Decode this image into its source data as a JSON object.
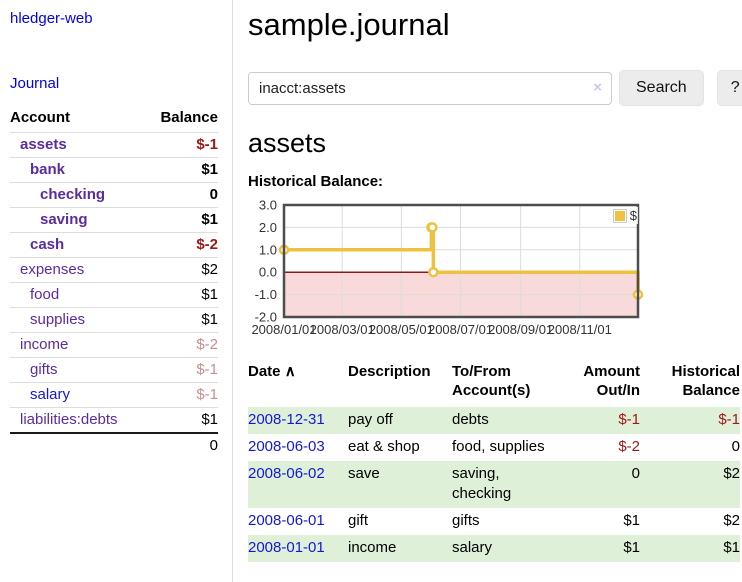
{
  "palette": {
    "link_purple": "#5a2ca0",
    "link_blue": "#1417d6",
    "neg": "#9e1616",
    "dimneg": "#c58f8f",
    "row_green": "#dff0d8",
    "chart_border": "#4d4d4d",
    "gridline": "#dcdcdc"
  },
  "sidebar": {
    "app_title": "hledger-web",
    "journal_label": "Journal",
    "table": {
      "account_header": "Account",
      "balance_header": "Balance",
      "total": "0"
    },
    "accounts": [
      {
        "name": "assets",
        "depth": 1,
        "bold": true,
        "balance": "$-1",
        "balance_style": "neg",
        "link_color": "purple"
      },
      {
        "name": "bank",
        "depth": 2,
        "bold": true,
        "balance": "$1",
        "balance_style": "pos",
        "link_color": "purple"
      },
      {
        "name": "checking",
        "depth": 3,
        "bold": true,
        "balance": "0",
        "balance_style": "pos",
        "link_color": "purple"
      },
      {
        "name": "saving",
        "depth": 3,
        "bold": true,
        "balance": "$1",
        "balance_style": "pos",
        "link_color": "purple"
      },
      {
        "name": "cash",
        "depth": 2,
        "bold": true,
        "balance": "$-2",
        "balance_style": "neg",
        "link_color": "purple"
      },
      {
        "name": "expenses",
        "depth": 1,
        "bold": false,
        "balance": "$2",
        "balance_style": "pos",
        "link_color": "purple"
      },
      {
        "name": "food",
        "depth": 2,
        "bold": false,
        "balance": "$1",
        "balance_style": "pos",
        "link_color": "purple"
      },
      {
        "name": "supplies",
        "depth": 2,
        "bold": false,
        "balance": "$1",
        "balance_style": "pos",
        "link_color": "purple"
      },
      {
        "name": "income",
        "depth": 1,
        "bold": false,
        "balance": "$-2",
        "balance_style": "dimneg",
        "link_color": "purple"
      },
      {
        "name": "gifts",
        "depth": 2,
        "bold": false,
        "balance": "$-1",
        "balance_style": "dimneg",
        "link_color": "purple"
      },
      {
        "name": "salary",
        "depth": 2,
        "bold": false,
        "balance": "$-1",
        "balance_style": "dimneg",
        "link_color": "blue"
      },
      {
        "name": "liabilities:debts",
        "depth": 1,
        "bold": false,
        "balance": "$1",
        "balance_style": "pos",
        "link_color": "purple"
      }
    ]
  },
  "main": {
    "title": "sample.journal",
    "search": {
      "value": "inacct:assets",
      "clear_icon": "×",
      "button_label": "Search",
      "help_label": "?"
    },
    "account_heading": "assets",
    "chart_title": "Historical Balance:",
    "register": {
      "sort_icon": "∧",
      "headers": [
        {
          "label": "Date"
        },
        {
          "label": "Description"
        },
        {
          "label": "To/From Account(s)"
        },
        {
          "label": "Amount Out/In",
          "align": "right"
        },
        {
          "label": "Historical Balance",
          "align": "right"
        }
      ],
      "rows": [
        {
          "date": "2008-12-31",
          "description": "pay off",
          "accounts": "debts",
          "amount": "$-1",
          "amount_style": "neg",
          "balance": "$-1",
          "balance_style": "neg"
        },
        {
          "date": "2008-06-03",
          "description": "eat & shop",
          "accounts": "food, supplies",
          "amount": "$-2",
          "amount_style": "neg",
          "balance": "0",
          "balance_style": "pos"
        },
        {
          "date": "2008-06-02",
          "description": "save",
          "accounts": "saving, checking",
          "amount": "0",
          "amount_style": "pos",
          "balance": "$2",
          "balance_style": "pos"
        },
        {
          "date": "2008-06-01",
          "description": "gift",
          "accounts": "gifts",
          "amount": "$1",
          "amount_style": "pos",
          "balance": "$2",
          "balance_style": "pos"
        },
        {
          "date": "2008-01-01",
          "description": "income",
          "accounts": "salary",
          "amount": "$1",
          "amount_style": "pos",
          "balance": "$1",
          "balance_style": "pos"
        }
      ]
    }
  },
  "chart_data": {
    "type": "line",
    "step": true,
    "title": "Historical Balance",
    "series": [
      {
        "name": "$",
        "color": "#edc240",
        "points": [
          [
            "2008-01-01",
            1
          ],
          [
            "2008-06-01",
            2
          ],
          [
            "2008-06-02",
            2
          ],
          [
            "2008-06-03",
            0
          ],
          [
            "2008-12-31",
            -1
          ]
        ]
      }
    ],
    "x_ticks": [
      "2008/01/01",
      "2008/03/01",
      "2008/05/01",
      "2008/07/01",
      "2008/09/01",
      "2008/11/01"
    ],
    "y_ticks": [
      3.0,
      2.0,
      1.0,
      0.0,
      -1.0,
      -2.0
    ],
    "xlim": [
      "2008-01-01",
      "2008-12-31"
    ],
    "ylim": [
      -2,
      3
    ],
    "grid": true,
    "legend_position": "top-right",
    "negative_fill": "#f9dada",
    "zero_line_color": "#8b1a1a"
  }
}
